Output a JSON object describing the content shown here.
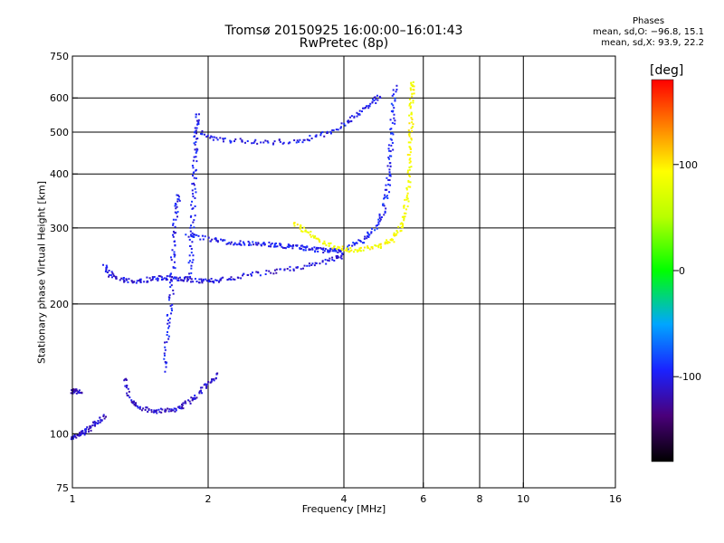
{
  "title_line1": "Tromsø 20150925 16:00:00–16:01:43",
  "title_line2": "RwPretec (8p)",
  "phases": {
    "header": "Phases",
    "line_o": "mean, sd,O: −96.8, 15.1",
    "line_x": "mean, sd,X:  93.9, 22.2"
  },
  "colorbar": {
    "unit": "[deg]",
    "ticks": [
      {
        "label": "100",
        "value": 100
      },
      {
        "label": "0",
        "value": 0
      },
      {
        "label": "-100",
        "value": -100
      }
    ],
    "range": [
      -180,
      180
    ]
  },
  "colors": {
    "o_mode": "#1530e0",
    "grid": "#000000"
  },
  "chart_data": {
    "type": "scatter",
    "xlabel": "Frequency [MHz]",
    "ylabel": "Stationary phase Virtual Height [km]",
    "x_scale": "log",
    "y_scale": "log",
    "xlim": [
      1,
      16
    ],
    "ylim": [
      75,
      750
    ],
    "x_ticks": [
      {
        "label": "1",
        "value": 1
      },
      {
        "label": "2",
        "value": 2
      },
      {
        "label": "4",
        "value": 4
      },
      {
        "label": "6",
        "value": 6
      },
      {
        "label": "8",
        "value": 8
      },
      {
        "label": "10",
        "value": 10
      },
      {
        "label": "16",
        "value": 16
      }
    ],
    "x_grid": [
      2,
      4,
      6,
      8,
      10
    ],
    "y_ticks": [
      {
        "label": "750",
        "value": 750
      },
      {
        "label": "600",
        "value": 600
      },
      {
        "label": "500",
        "value": 500
      },
      {
        "label": "400",
        "value": 400
      },
      {
        "label": "300",
        "value": 300
      },
      {
        "label": "200",
        "value": 200
      },
      {
        "label": "100",
        "value": 100
      },
      {
        "label": "75",
        "value": 75
      }
    ],
    "y_grid": [
      600,
      500,
      400,
      300,
      200,
      100
    ],
    "grid": true,
    "traces": [
      {
        "desc": "low E trace",
        "phase": -110,
        "points": [
          [
            1.0,
            98
          ],
          [
            1.03,
            99
          ],
          [
            1.06,
            101
          ],
          [
            1.1,
            103
          ],
          [
            1.14,
            107
          ],
          [
            1.18,
            110
          ]
        ]
      },
      {
        "desc": "low edge",
        "phase": -115,
        "points": [
          [
            1.0,
            125
          ],
          [
            1.02,
            126
          ],
          [
            1.05,
            124
          ]
        ]
      },
      {
        "desc": "Es trace",
        "phase": -110,
        "points": [
          [
            1.3,
            135
          ],
          [
            1.35,
            120
          ],
          [
            1.4,
            115
          ],
          [
            1.5,
            113
          ],
          [
            1.6,
            113
          ],
          [
            1.7,
            114
          ],
          [
            1.8,
            118
          ],
          [
            1.9,
            124
          ],
          [
            2.0,
            130
          ],
          [
            2.1,
            138
          ]
        ]
      },
      {
        "desc": "F1 low trace",
        "phase": -105,
        "points": [
          [
            1.18,
            245
          ],
          [
            1.22,
            232
          ],
          [
            1.3,
            227
          ],
          [
            1.4,
            226
          ],
          [
            1.5,
            228
          ],
          [
            1.6,
            230
          ],
          [
            1.7,
            229
          ],
          [
            1.8,
            228
          ],
          [
            1.95,
            226
          ],
          [
            2.1,
            227
          ],
          [
            2.3,
            230
          ],
          [
            2.6,
            235
          ],
          [
            3.0,
            240
          ],
          [
            3.4,
            246
          ],
          [
            3.8,
            254
          ],
          [
            4.0,
            260
          ]
        ]
      },
      {
        "desc": "F1 upper band",
        "phase": -100,
        "points": [
          [
            1.8,
            290
          ],
          [
            2.0,
            282
          ],
          [
            2.2,
            278
          ],
          [
            2.4,
            276
          ],
          [
            2.6,
            275
          ],
          [
            2.8,
            274
          ],
          [
            3.0,
            272
          ],
          [
            3.2,
            270
          ],
          [
            3.4,
            268
          ],
          [
            3.6,
            266
          ],
          [
            3.8,
            265
          ],
          [
            4.0,
            267
          ]
        ]
      },
      {
        "desc": "F2 o trace",
        "phase": -95,
        "points": [
          [
            4.1,
            270
          ],
          [
            4.4,
            280
          ],
          [
            4.7,
            300
          ],
          [
            4.9,
            330
          ],
          [
            5.0,
            370
          ],
          [
            5.05,
            420
          ],
          [
            5.1,
            480
          ],
          [
            5.15,
            560
          ],
          [
            5.2,
            640
          ]
        ]
      },
      {
        "desc": "F2 x trace",
        "phase": 90,
        "points": [
          [
            3.1,
            310
          ],
          [
            3.3,
            295
          ],
          [
            3.5,
            282
          ],
          [
            3.8,
            272
          ],
          [
            4.1,
            266
          ],
          [
            4.4,
            268
          ],
          [
            4.8,
            272
          ],
          [
            5.1,
            280
          ],
          [
            5.3,
            295
          ],
          [
            5.45,
            320
          ],
          [
            5.55,
            360
          ],
          [
            5.6,
            420
          ],
          [
            5.62,
            480
          ],
          [
            5.64,
            540
          ],
          [
            5.66,
            610
          ],
          [
            5.68,
            660
          ]
        ]
      },
      {
        "desc": "multiple hop trace",
        "phase": -100,
        "points": [
          [
            1.9,
            500
          ],
          [
            2.1,
            480
          ],
          [
            2.4,
            476
          ],
          [
            2.8,
            474
          ],
          [
            3.2,
            478
          ],
          [
            3.6,
            492
          ],
          [
            4.0,
            520
          ],
          [
            4.3,
            550
          ],
          [
            4.6,
            580
          ],
          [
            4.8,
            610
          ]
        ]
      },
      {
        "desc": "vertical spread 1.6-1.7",
        "phase": -100,
        "points": [
          [
            1.6,
            140
          ],
          [
            1.62,
            170
          ],
          [
            1.65,
            200
          ],
          [
            1.67,
            240
          ],
          [
            1.68,
            280
          ],
          [
            1.7,
            330
          ],
          [
            1.72,
            360
          ]
        ]
      },
      {
        "desc": "vertical spread 1.8-1.9",
        "phase": -100,
        "points": [
          [
            1.82,
            230
          ],
          [
            1.84,
            270
          ],
          [
            1.85,
            320
          ],
          [
            1.86,
            380
          ],
          [
            1.87,
            440
          ],
          [
            1.88,
            500
          ],
          [
            1.9,
            560
          ]
        ]
      }
    ]
  }
}
